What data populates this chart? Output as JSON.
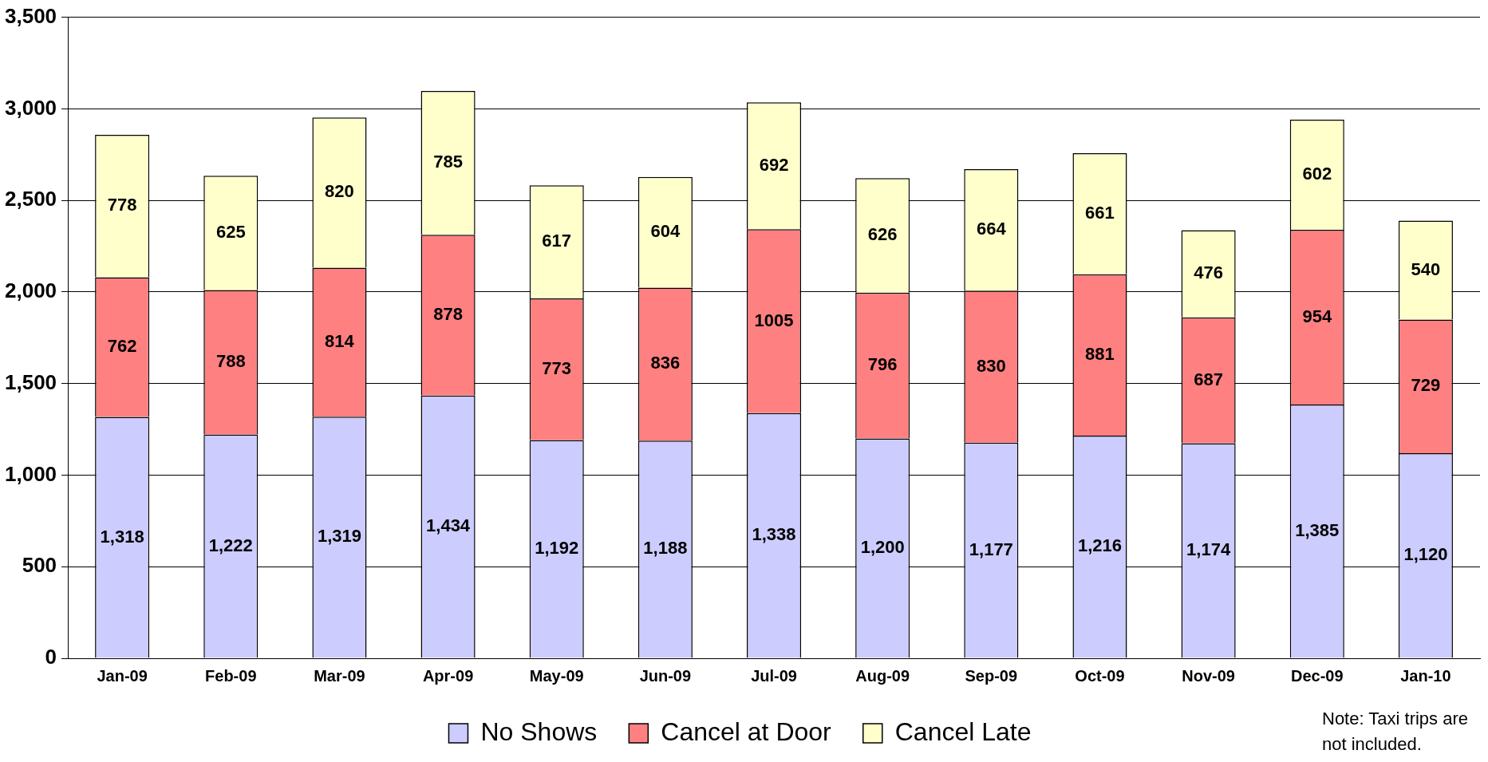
{
  "chart_data": {
    "type": "bar",
    "stacked": true,
    "categories": [
      "Jan-09",
      "Feb-09",
      "Mar-09",
      "Apr-09",
      "May-09",
      "Jun-09",
      "Jul-09",
      "Aug-09",
      "Sep-09",
      "Oct-09",
      "Nov-09",
      "Dec-09",
      "Jan-10"
    ],
    "series": [
      {
        "name": "No Shows",
        "color": "#ccccff",
        "values": [
          1318,
          1222,
          1319,
          1434,
          1192,
          1188,
          1338,
          1200,
          1177,
          1216,
          1174,
          1385,
          1120
        ],
        "value_labels": [
          "1,318",
          "1,222",
          "1,319",
          "1,434",
          "1,192",
          "1,188",
          "1,338",
          "1,200",
          "1,177",
          "1,216",
          "1,174",
          "1,385",
          "1,120"
        ]
      },
      {
        "name": "Cancel at Door",
        "color": "#ff8080",
        "values": [
          762,
          788,
          814,
          878,
          773,
          836,
          1005,
          796,
          830,
          881,
          687,
          954,
          729
        ],
        "value_labels": [
          "762",
          "788",
          "814",
          "878",
          "773",
          "836",
          "1005",
          "796",
          "830",
          "881",
          "687",
          "954",
          "729"
        ]
      },
      {
        "name": "Cancel Late",
        "color": "#ffffcc",
        "values": [
          778,
          625,
          820,
          785,
          617,
          604,
          692,
          626,
          664,
          661,
          476,
          602,
          540
        ],
        "value_labels": [
          "778",
          "625",
          "820",
          "785",
          "617",
          "604",
          "692",
          "626",
          "664",
          "661",
          "476",
          "602",
          "540"
        ]
      }
    ],
    "ylim": [
      0,
      3500
    ],
    "yticks": [
      {
        "value": 0,
        "label": "0"
      },
      {
        "value": 500,
        "label": "500"
      },
      {
        "value": 1000,
        "label": "1,000"
      },
      {
        "value": 1500,
        "label": "1,500"
      },
      {
        "value": 2000,
        "label": "2,000"
      },
      {
        "value": 2500,
        "label": "2,500"
      },
      {
        "value": 3000,
        "label": "3,000"
      },
      {
        "value": 3500,
        "label": "3,500"
      }
    ],
    "grid": "y",
    "legend": "bottom",
    "annotations": [
      "Note: Taxi trips are not included."
    ]
  }
}
